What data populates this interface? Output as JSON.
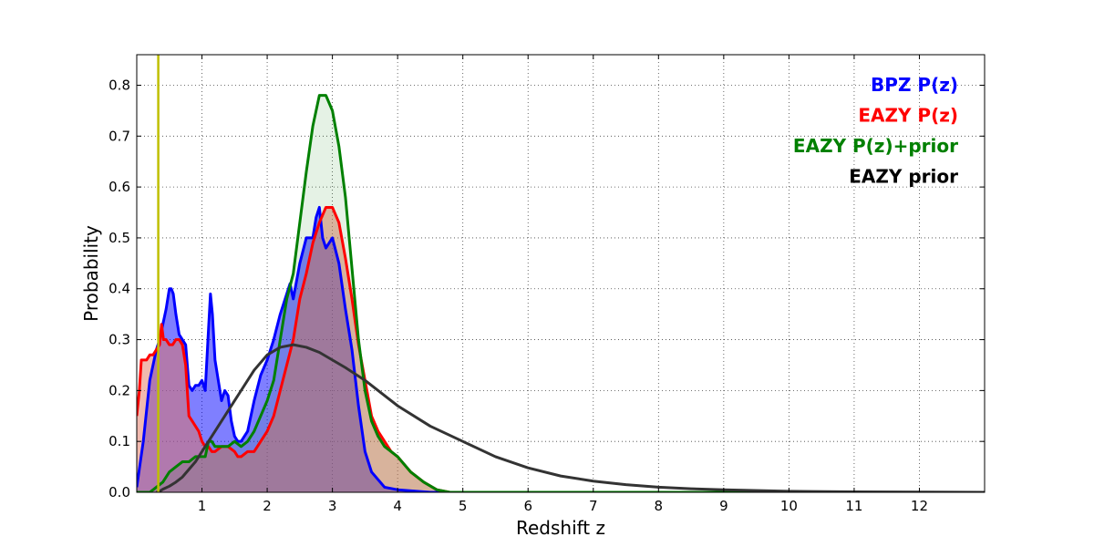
{
  "chart_data": {
    "type": "area",
    "title": "",
    "xlabel": "Redshift z",
    "ylabel": "Probability",
    "xlim": [
      0,
      13
    ],
    "ylim": [
      0,
      0.86
    ],
    "x_ticks": [
      1,
      2,
      3,
      4,
      5,
      6,
      7,
      8,
      9,
      10,
      11,
      12
    ],
    "y_ticks": [
      0.0,
      0.1,
      0.2,
      0.3,
      0.4,
      0.5,
      0.6,
      0.7,
      0.8
    ],
    "y_tick_labels": [
      "0.0",
      "0.1",
      "0.2",
      "0.3",
      "0.4",
      "0.5",
      "0.6",
      "0.7",
      "0.8"
    ],
    "grid": true,
    "legend_position": "top-right",
    "vertical_line": {
      "x": 0.33,
      "color": "#bfbf00"
    },
    "series": [
      {
        "name": "BPZ P(z)",
        "color": "#0000ff",
        "fill_color": "#0000ff",
        "fill_opacity": 0.5,
        "x": [
          0,
          0.1,
          0.2,
          0.3,
          0.35,
          0.4,
          0.45,
          0.5,
          0.53,
          0.56,
          0.6,
          0.65,
          0.7,
          0.75,
          0.8,
          0.85,
          0.9,
          0.95,
          1.0,
          1.05,
          1.1,
          1.13,
          1.16,
          1.2,
          1.25,
          1.3,
          1.35,
          1.4,
          1.45,
          1.5,
          1.55,
          1.6,
          1.7,
          1.8,
          1.9,
          2.0,
          2.1,
          2.2,
          2.3,
          2.35,
          2.4,
          2.5,
          2.6,
          2.7,
          2.75,
          2.8,
          2.85,
          2.9,
          3.0,
          3.1,
          3.2,
          3.3,
          3.4,
          3.5,
          3.6,
          3.8,
          4.0,
          4.5,
          5.0,
          13
        ],
        "y": [
          0.01,
          0.1,
          0.22,
          0.28,
          0.3,
          0.33,
          0.36,
          0.4,
          0.4,
          0.39,
          0.35,
          0.31,
          0.3,
          0.29,
          0.21,
          0.2,
          0.21,
          0.21,
          0.22,
          0.2,
          0.32,
          0.39,
          0.35,
          0.26,
          0.22,
          0.18,
          0.2,
          0.19,
          0.14,
          0.11,
          0.1,
          0.1,
          0.12,
          0.18,
          0.23,
          0.26,
          0.3,
          0.35,
          0.39,
          0.41,
          0.38,
          0.45,
          0.5,
          0.5,
          0.54,
          0.56,
          0.5,
          0.48,
          0.5,
          0.45,
          0.36,
          0.28,
          0.17,
          0.08,
          0.04,
          0.01,
          0.005,
          0,
          0,
          0
        ]
      },
      {
        "name": "EAZY P(z)",
        "color": "#ff0000",
        "fill_color": "#e3735e",
        "fill_opacity": 0.5,
        "x": [
          0,
          0.04,
          0.07,
          0.1,
          0.15,
          0.2,
          0.25,
          0.3,
          0.35,
          0.38,
          0.41,
          0.45,
          0.5,
          0.55,
          0.6,
          0.65,
          0.7,
          0.75,
          0.8,
          0.85,
          0.9,
          0.95,
          1.0,
          1.05,
          1.1,
          1.15,
          1.2,
          1.3,
          1.4,
          1.5,
          1.55,
          1.6,
          1.7,
          1.8,
          1.9,
          2.0,
          2.1,
          2.2,
          2.3,
          2.4,
          2.5,
          2.6,
          2.7,
          2.8,
          2.9,
          3.0,
          3.1,
          3.2,
          3.3,
          3.4,
          3.5,
          3.6,
          3.7,
          3.8,
          3.9,
          4.0,
          4.2,
          4.4,
          4.6,
          4.8,
          5.0,
          13
        ],
        "y": [
          0.15,
          0.2,
          0.26,
          0.26,
          0.26,
          0.27,
          0.27,
          0.28,
          0.29,
          0.33,
          0.3,
          0.3,
          0.29,
          0.29,
          0.3,
          0.3,
          0.29,
          0.25,
          0.15,
          0.14,
          0.13,
          0.12,
          0.1,
          0.09,
          0.09,
          0.08,
          0.08,
          0.09,
          0.09,
          0.08,
          0.07,
          0.07,
          0.08,
          0.08,
          0.1,
          0.12,
          0.15,
          0.2,
          0.25,
          0.3,
          0.38,
          0.43,
          0.49,
          0.53,
          0.56,
          0.56,
          0.53,
          0.46,
          0.38,
          0.29,
          0.22,
          0.15,
          0.12,
          0.1,
          0.08,
          0.07,
          0.04,
          0.02,
          0.005,
          0,
          0,
          0
        ]
      },
      {
        "name": "EAZY P(z)+prior",
        "color": "#008000",
        "fill_color": "#008000",
        "fill_opacity": 0.1,
        "x": [
          0,
          0.2,
          0.3,
          0.4,
          0.5,
          0.6,
          0.7,
          0.8,
          0.9,
          1.0,
          1.05,
          1.1,
          1.15,
          1.2,
          1.3,
          1.4,
          1.5,
          1.6,
          1.7,
          1.8,
          1.9,
          2.0,
          2.1,
          2.2,
          2.3,
          2.4,
          2.5,
          2.6,
          2.7,
          2.8,
          2.85,
          2.9,
          3.0,
          3.1,
          3.2,
          3.3,
          3.4,
          3.5,
          3.6,
          3.7,
          3.8,
          3.9,
          4.0,
          4.2,
          4.4,
          4.6,
          4.8,
          5.0,
          13
        ],
        "y": [
          0,
          0,
          0.01,
          0.02,
          0.04,
          0.05,
          0.06,
          0.06,
          0.07,
          0.07,
          0.07,
          0.1,
          0.1,
          0.09,
          0.09,
          0.09,
          0.1,
          0.09,
          0.1,
          0.12,
          0.15,
          0.18,
          0.22,
          0.3,
          0.38,
          0.43,
          0.53,
          0.63,
          0.72,
          0.78,
          0.78,
          0.78,
          0.75,
          0.68,
          0.58,
          0.44,
          0.3,
          0.2,
          0.14,
          0.11,
          0.09,
          0.08,
          0.07,
          0.04,
          0.02,
          0.005,
          0,
          0,
          0
        ]
      },
      {
        "name": "EAZY prior",
        "color": "#333333",
        "fill_color": "none",
        "fill_opacity": 0,
        "x": [
          0.3,
          0.35,
          0.4,
          0.5,
          0.6,
          0.7,
          0.8,
          0.9,
          1.0,
          1.2,
          1.4,
          1.6,
          1.8,
          2.0,
          2.2,
          2.4,
          2.6,
          2.8,
          3.0,
          3.2,
          3.5,
          4.0,
          4.5,
          5.0,
          5.5,
          6.0,
          6.5,
          7.0,
          7.5,
          8.0,
          8.5,
          9.0,
          10.0,
          11.0,
          12.0,
          13.0
        ],
        "y": [
          0,
          0.002,
          0.006,
          0.012,
          0.02,
          0.03,
          0.045,
          0.06,
          0.08,
          0.12,
          0.16,
          0.2,
          0.24,
          0.27,
          0.285,
          0.29,
          0.285,
          0.275,
          0.26,
          0.245,
          0.22,
          0.17,
          0.13,
          0.1,
          0.07,
          0.048,
          0.032,
          0.022,
          0.015,
          0.01,
          0.007,
          0.005,
          0.002,
          0.001,
          0.0005,
          0
        ]
      }
    ],
    "legend": [
      {
        "label": "BPZ P(z)",
        "color": "#0000ff"
      },
      {
        "label": "EAZY P(z)",
        "color": "#ff0000"
      },
      {
        "label": "EAZY P(z)+prior",
        "color": "#008000"
      },
      {
        "label": "EAZY prior",
        "color": "#000000"
      }
    ]
  }
}
